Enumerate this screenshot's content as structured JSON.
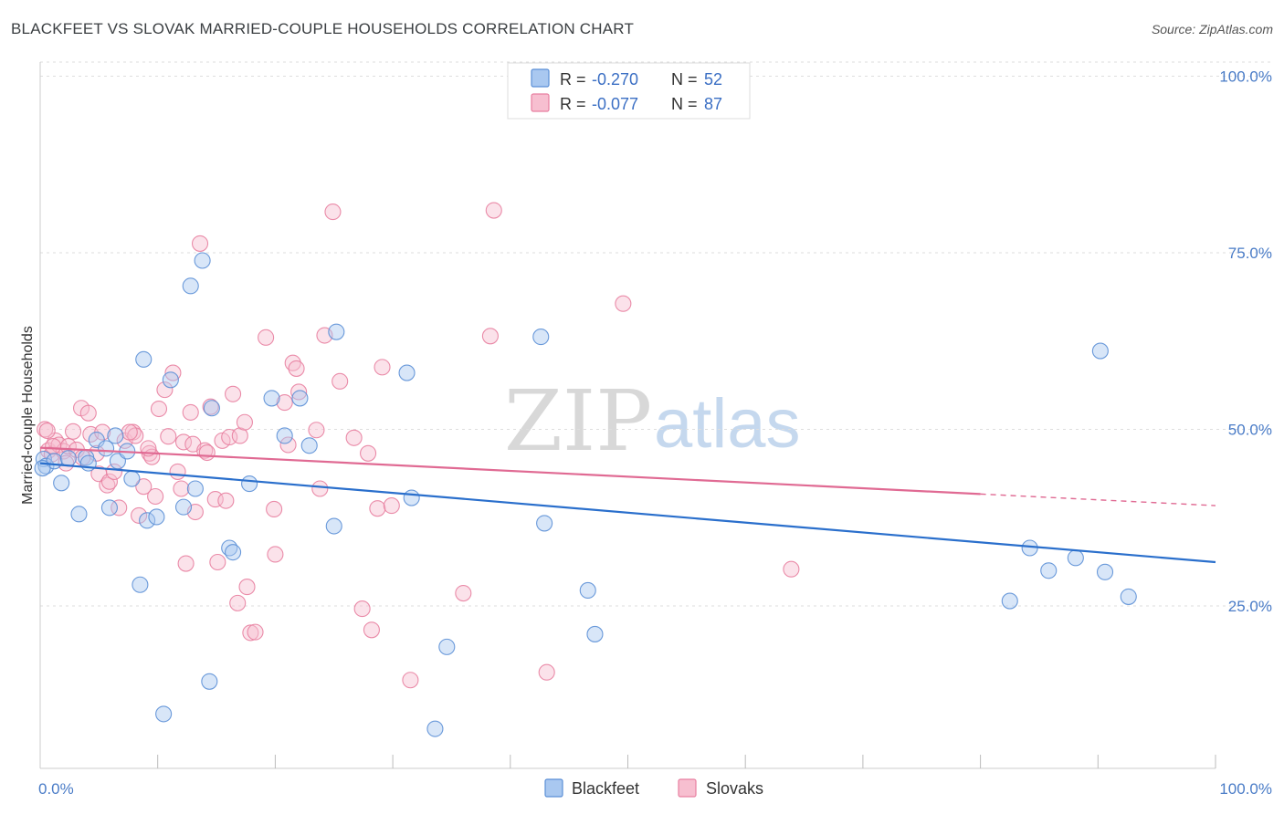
{
  "header": {
    "title": "BLACKFEET VS SLOVAK MARRIED-COUPLE HOUSEHOLDS CORRELATION CHART",
    "source": "Source: ZipAtlas.com"
  },
  "legend": {
    "r_label": "R =",
    "n_label": "N =",
    "series": [
      {
        "r": "-0.270",
        "n": "52"
      },
      {
        "r": "-0.077",
        "n": "87"
      }
    ]
  },
  "watermark": {
    "zip": "ZIP",
    "atlas": "atlas"
  },
  "colors": {
    "blackfeet_fill": "#a9c8f0",
    "blackfeet_stroke": "#5b8fd6",
    "blackfeet_line": "#2a6fcc",
    "slovaks_fill": "#f7bfd0",
    "slovaks_stroke": "#e87fa0",
    "slovaks_line": "#e06a93"
  },
  "chart_data": {
    "type": "scatter",
    "title": "BLACKFEET VS SLOVAK MARRIED-COUPLE HOUSEHOLDS CORRELATION CHART",
    "xlabel": "",
    "ylabel": "Married-couple Households",
    "xlim": [
      0,
      100
    ],
    "ylim": [
      2,
      102
    ],
    "x_tick_labels": [
      "0.0%",
      "100.0%"
    ],
    "y_ticks": [
      25,
      50,
      75,
      100
    ],
    "y_tick_labels": [
      "25.0%",
      "50.0%",
      "75.0%",
      "100.0%"
    ],
    "series": [
      {
        "name": "Blackfeet",
        "trend": {
          "x": [
            0,
            100
          ],
          "y": [
            45.2,
            31.2
          ],
          "dashed_from": null
        },
        "points": [
          [
            0.3,
            45.8
          ],
          [
            0.5,
            44.8
          ],
          [
            1.2,
            45.5
          ],
          [
            1.8,
            42.4
          ],
          [
            2.4,
            45.9
          ],
          [
            3.3,
            38.0
          ],
          [
            3.9,
            46.0
          ],
          [
            4.1,
            45.2
          ],
          [
            4.8,
            48.5
          ],
          [
            5.6,
            47.3
          ],
          [
            5.9,
            38.9
          ],
          [
            6.4,
            49.1
          ],
          [
            6.6,
            45.5
          ],
          [
            7.4,
            46.9
          ],
          [
            7.8,
            43.0
          ],
          [
            8.5,
            28.0
          ],
          [
            8.8,
            59.9
          ],
          [
            9.1,
            37.1
          ],
          [
            9.9,
            37.6
          ],
          [
            10.5,
            9.7
          ],
          [
            11.1,
            57.0
          ],
          [
            12.2,
            39.0
          ],
          [
            12.8,
            70.3
          ],
          [
            13.2,
            41.6
          ],
          [
            13.8,
            73.9
          ],
          [
            14.4,
            14.3
          ],
          [
            14.6,
            53.0
          ],
          [
            16.1,
            33.2
          ],
          [
            16.4,
            32.6
          ],
          [
            17.8,
            42.3
          ],
          [
            19.7,
            54.4
          ],
          [
            20.8,
            49.1
          ],
          [
            22.1,
            54.4
          ],
          [
            22.9,
            47.7
          ],
          [
            25.2,
            63.8
          ],
          [
            25.0,
            36.3
          ],
          [
            31.2,
            58.0
          ],
          [
            31.6,
            40.3
          ],
          [
            33.6,
            7.6
          ],
          [
            34.6,
            19.2
          ],
          [
            42.6,
            63.1
          ],
          [
            42.9,
            36.7
          ],
          [
            46.6,
            27.2
          ],
          [
            47.2,
            21.0
          ],
          [
            82.5,
            25.7
          ],
          [
            84.2,
            33.2
          ],
          [
            85.8,
            30.0
          ],
          [
            88.1,
            31.8
          ],
          [
            90.2,
            61.1
          ],
          [
            90.6,
            29.8
          ],
          [
            92.6,
            26.3
          ],
          [
            0.2,
            44.5
          ]
        ]
      },
      {
        "name": "Slovaks",
        "trend": {
          "x": [
            0,
            100
          ],
          "y": [
            47.4,
            39.2
          ],
          "dashed_from": 80
        },
        "points": [
          [
            0.4,
            50.0
          ],
          [
            0.7,
            47.0
          ],
          [
            1.0,
            46.5
          ],
          [
            1.3,
            48.4
          ],
          [
            1.6,
            47.8
          ],
          [
            2.0,
            46.9
          ],
          [
            2.4,
            47.6
          ],
          [
            2.8,
            49.7
          ],
          [
            3.1,
            47.1
          ],
          [
            3.5,
            53.0
          ],
          [
            4.1,
            52.3
          ],
          [
            4.3,
            49.3
          ],
          [
            4.8,
            46.6
          ],
          [
            5.0,
            43.7
          ],
          [
            5.3,
            49.6
          ],
          [
            5.7,
            42.1
          ],
          [
            5.9,
            42.6
          ],
          [
            6.3,
            44.0
          ],
          [
            6.7,
            38.9
          ],
          [
            7.2,
            48.4
          ],
          [
            7.9,
            49.6
          ],
          [
            8.1,
            49.1
          ],
          [
            8.4,
            37.8
          ],
          [
            8.8,
            41.9
          ],
          [
            9.3,
            46.6
          ],
          [
            9.5,
            46.1
          ],
          [
            9.8,
            40.5
          ],
          [
            10.1,
            52.9
          ],
          [
            10.6,
            55.6
          ],
          [
            10.9,
            49.0
          ],
          [
            11.3,
            58.0
          ],
          [
            11.7,
            44.0
          ],
          [
            12.0,
            41.6
          ],
          [
            12.2,
            48.2
          ],
          [
            12.4,
            31.0
          ],
          [
            12.8,
            52.4
          ],
          [
            13.0,
            47.9
          ],
          [
            13.2,
            38.3
          ],
          [
            13.6,
            76.3
          ],
          [
            14.0,
            47.0
          ],
          [
            14.2,
            46.7
          ],
          [
            14.5,
            53.2
          ],
          [
            14.9,
            40.1
          ],
          [
            15.1,
            31.2
          ],
          [
            15.5,
            48.4
          ],
          [
            15.8,
            39.9
          ],
          [
            16.1,
            48.9
          ],
          [
            16.4,
            55.0
          ],
          [
            16.8,
            25.4
          ],
          [
            17.0,
            49.1
          ],
          [
            17.4,
            51.0
          ],
          [
            17.6,
            27.7
          ],
          [
            17.9,
            21.2
          ],
          [
            18.3,
            21.3
          ],
          [
            19.2,
            63.0
          ],
          [
            19.9,
            38.7
          ],
          [
            20.0,
            32.3
          ],
          [
            20.8,
            53.8
          ],
          [
            21.1,
            47.8
          ],
          [
            21.5,
            59.4
          ],
          [
            21.8,
            58.6
          ],
          [
            22.0,
            55.3
          ],
          [
            23.5,
            49.9
          ],
          [
            23.8,
            41.6
          ],
          [
            24.2,
            63.3
          ],
          [
            24.9,
            80.8
          ],
          [
            25.5,
            56.8
          ],
          [
            26.7,
            48.8
          ],
          [
            27.4,
            24.6
          ],
          [
            27.9,
            46.6
          ],
          [
            28.2,
            21.6
          ],
          [
            28.7,
            38.8
          ],
          [
            29.1,
            58.8
          ],
          [
            29.9,
            39.2
          ],
          [
            31.5,
            14.5
          ],
          [
            36.0,
            26.8
          ],
          [
            38.3,
            63.2
          ],
          [
            38.6,
            81.0
          ],
          [
            43.1,
            15.6
          ],
          [
            49.6,
            67.8
          ],
          [
            63.9,
            30.2
          ],
          [
            7.6,
            49.6
          ],
          [
            9.2,
            47.3
          ],
          [
            3.6,
            46.0
          ],
          [
            1.1,
            47.6
          ],
          [
            0.6,
            49.8
          ],
          [
            2.2,
            45.2
          ]
        ]
      }
    ]
  },
  "bottom_legend": {
    "items": [
      "Blackfeet",
      "Slovaks"
    ]
  }
}
